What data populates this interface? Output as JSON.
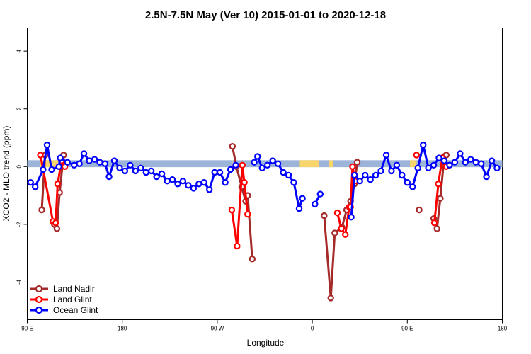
{
  "chart_data": {
    "type": "line",
    "title": "2.5N-7.5N May (Ver 10)   2015-01-01 to 2020-12-18",
    "xlabel": "Longitude",
    "ylabel": "XCO2 - MLO trend (ppm)",
    "xlim": [
      0,
      360
    ],
    "ylim": [
      -5.3,
      4.8
    ],
    "x_ticks": [
      {
        "value": 0,
        "label": "90 E"
      },
      {
        "value": 72,
        "label": "180"
      },
      {
        "value": 144,
        "label": "90 W"
      },
      {
        "value": 216,
        "label": "0"
      },
      {
        "value": 288,
        "label": "90 E"
      },
      {
        "value": 360,
        "label": "180"
      }
    ],
    "y_ticks": [
      {
        "value": -4,
        "label": "-4"
      },
      {
        "value": -2,
        "label": "-2"
      },
      {
        "value": 0,
        "label": "0"
      },
      {
        "value": 2,
        "label": "2"
      },
      {
        "value": 4,
        "label": "4"
      }
    ],
    "grid": false,
    "legend_position": "bottom-left",
    "land_segments": [
      [
        9.5,
        23.3
      ],
      [
        155,
        155.3
      ],
      [
        206.5,
        221
      ],
      [
        228.5,
        232
      ],
      [
        290,
        295
      ]
    ],
    "series": [
      {
        "name": "Land Nadir",
        "color": "#a52a2a",
        "segments": [
          [
            [
              11,
              -1.5
            ],
            [
              13.5,
              0.4
            ]
          ],
          [
            [
              20.5,
              -2.0
            ],
            [
              22.5,
              -2.15
            ],
            [
              24.5,
              -0.9
            ],
            [
              27.5,
              0.4
            ]
          ],
          [
            [
              155.5,
              0.7
            ],
            [
              158.5,
              0
            ],
            [
              162.5,
              -0.7
            ],
            [
              165.5,
              -1.2
            ],
            [
              167,
              -1.0
            ],
            [
              170.5,
              -3.2
            ]
          ],
          [
            [
              225,
              -1.7
            ],
            [
              230,
              -4.55
            ],
            [
              233,
              -2.3
            ],
            [
              238.5,
              -2.1
            ],
            [
              242,
              -1.5
            ],
            [
              245,
              -1.2
            ],
            [
              248,
              -0.6
            ],
            [
              250,
              0.15
            ]
          ],
          [
            [
              297,
              -1.5
            ]
          ],
          [
            [
              308,
              -1.8
            ],
            [
              310.5,
              -2.15
            ],
            [
              313,
              -1.1
            ],
            [
              316,
              0.35
            ],
            [
              317.5,
              0.4
            ]
          ]
        ]
      },
      {
        "name": "Land Glint",
        "color": "#ff0000",
        "segments": [
          [
            [
              10,
              0.4
            ],
            [
              19.5,
              -1.9
            ],
            [
              21.5,
              -1.95
            ],
            [
              23,
              -0.6
            ],
            [
              26,
              0.2
            ],
            [
              28.5,
              0
            ]
          ],
          [
            [
              155,
              -1.5
            ],
            [
              159,
              -2.75
            ],
            [
              163,
              0.05
            ],
            [
              164.5,
              -0.55
            ],
            [
              167,
              -1.65
            ]
          ],
          [
            [
              235,
              -1.6
            ],
            [
              238,
              -2.15
            ],
            [
              241,
              -2.35
            ],
            [
              244,
              -1.4
            ],
            [
              245,
              -1.4
            ],
            [
              246.5,
              0
            ],
            [
              248.5,
              -0.5
            ]
          ],
          [
            [
              295,
              0.4
            ]
          ],
          [
            [
              308.5,
              -1.95
            ],
            [
              311.5,
              -0.6
            ],
            [
              314.5,
              0.3
            ],
            [
              317.5,
              0
            ]
          ]
        ]
      },
      {
        "name": "Ocean Glint",
        "color": "#0000ff",
        "segments": [
          [
            [
              2.5,
              -0.55
            ],
            [
              6,
              -0.7
            ],
            [
              12,
              -0.1
            ],
            [
              15,
              0.75
            ],
            [
              18.5,
              -0.1
            ],
            [
              24,
              0
            ],
            [
              25,
              0.3
            ],
            [
              30.5,
              0.15
            ],
            [
              35.5,
              0.05
            ],
            [
              39.5,
              0.1
            ],
            [
              43,
              0.45
            ],
            [
              47,
              0.2
            ],
            [
              51,
              0.25
            ],
            [
              55,
              0.15
            ],
            [
              59,
              0.1
            ],
            [
              62,
              -0.35
            ],
            [
              66,
              0.2
            ],
            [
              70,
              -0.05
            ],
            [
              74,
              -0.15
            ],
            [
              78,
              0.05
            ],
            [
              82,
              -0.15
            ],
            [
              86,
              -0.05
            ],
            [
              90,
              -0.2
            ],
            [
              94,
              -0.15
            ],
            [
              98,
              -0.35
            ],
            [
              102,
              -0.25
            ],
            [
              106,
              -0.5
            ],
            [
              110,
              -0.45
            ],
            [
              114,
              -0.6
            ],
            [
              118,
              -0.5
            ],
            [
              122,
              -0.65
            ],
            [
              126,
              -0.75
            ],
            [
              130,
              -0.6
            ],
            [
              134,
              -0.55
            ],
            [
              138,
              -0.8
            ],
            [
              142,
              -0.2
            ],
            [
              146,
              -0.2
            ],
            [
              150,
              -0.55
            ],
            [
              154,
              -0.1
            ],
            [
              158,
              0.05
            ]
          ],
          [
            [
              172,
              0.15
            ],
            [
              174.5,
              0.35
            ],
            [
              178,
              -0.05
            ],
            [
              182,
              0.05
            ],
            [
              186,
              0.2
            ],
            [
              190,
              0.1
            ],
            [
              194,
              -0.2
            ],
            [
              198,
              -0.3
            ],
            [
              202,
              -0.55
            ],
            [
              206,
              -1.45
            ],
            [
              208.5,
              -1.1
            ]
          ],
          [
            [
              218,
              -1.3
            ],
            [
              222,
              -0.95
            ]
          ],
          [
            [
              245.5,
              -1.75
            ],
            [
              248,
              -0.3
            ],
            [
              252,
              -0.5
            ],
            [
              256,
              -0.3
            ],
            [
              260,
              -0.45
            ],
            [
              264,
              -0.3
            ],
            [
              268,
              -0.15
            ],
            [
              272,
              0.4
            ],
            [
              276,
              -0.15
            ],
            [
              280,
              0.05
            ],
            [
              284,
              -0.3
            ],
            [
              288,
              -0.55
            ],
            [
              292,
              -0.7
            ],
            [
              296,
              -0.05
            ],
            [
              300,
              0.75
            ],
            [
              304,
              -0.05
            ],
            [
              308,
              0.05
            ],
            [
              312,
              0.3
            ],
            [
              316,
              0.2
            ],
            [
              320,
              0.05
            ],
            [
              324,
              0.15
            ],
            [
              328,
              0.45
            ],
            [
              332,
              0.15
            ],
            [
              336,
              0.25
            ],
            [
              340,
              0.15
            ],
            [
              344,
              0.1
            ],
            [
              348,
              -0.35
            ],
            [
              352,
              0.2
            ],
            [
              356,
              -0.05
            ]
          ]
        ]
      }
    ]
  }
}
